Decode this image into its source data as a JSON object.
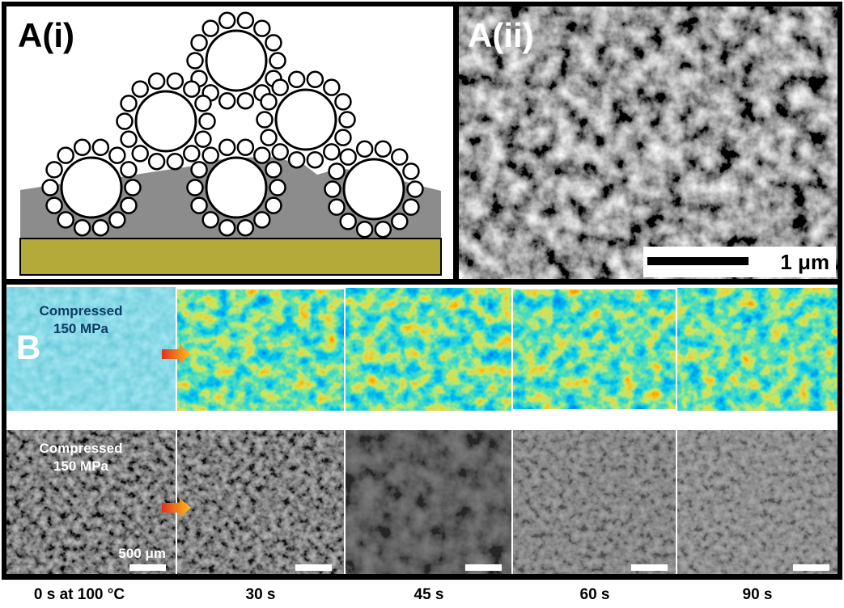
{
  "panel_a": {
    "left_label": "A(i)",
    "right_label": "A(ii)",
    "scale_bar_label": "1 μm"
  },
  "panel_b": {
    "label": "B",
    "top_inset": [
      "Compressed",
      "150 MPa"
    ],
    "bottom_inset": [
      "Compressed",
      "150 MPa"
    ],
    "scale_bar_label": "500 μm",
    "time_labels": [
      "0 s at 100 °C",
      "30 s",
      "45 s",
      "60 s",
      "90 s"
    ]
  }
}
